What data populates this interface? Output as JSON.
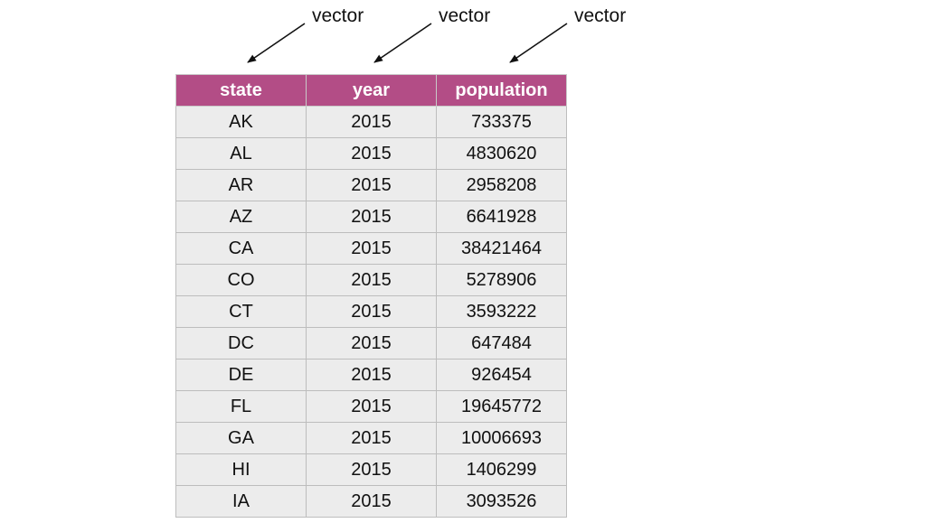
{
  "annotations": [
    "vector",
    "vector",
    "vector"
  ],
  "table": {
    "columns": [
      "state",
      "year",
      "population"
    ],
    "rows": [
      [
        "AK",
        "2015",
        "733375"
      ],
      [
        "AL",
        "2015",
        "4830620"
      ],
      [
        "AR",
        "2015",
        "2958208"
      ],
      [
        "AZ",
        "2015",
        "6641928"
      ],
      [
        "CA",
        "2015",
        "38421464"
      ],
      [
        "CO",
        "2015",
        "5278906"
      ],
      [
        "CT",
        "2015",
        "3593222"
      ],
      [
        "DC",
        "2015",
        "647484"
      ],
      [
        "DE",
        "2015",
        "926454"
      ],
      [
        "FL",
        "2015",
        "19645772"
      ],
      [
        "GA",
        "2015",
        "10006693"
      ],
      [
        "HI",
        "2015",
        "1406299"
      ],
      [
        "IA",
        "2015",
        "3093526"
      ]
    ]
  },
  "colors": {
    "header_bg": "#b34d86",
    "cell_bg": "#ececec",
    "header_text": "#ffffff"
  }
}
